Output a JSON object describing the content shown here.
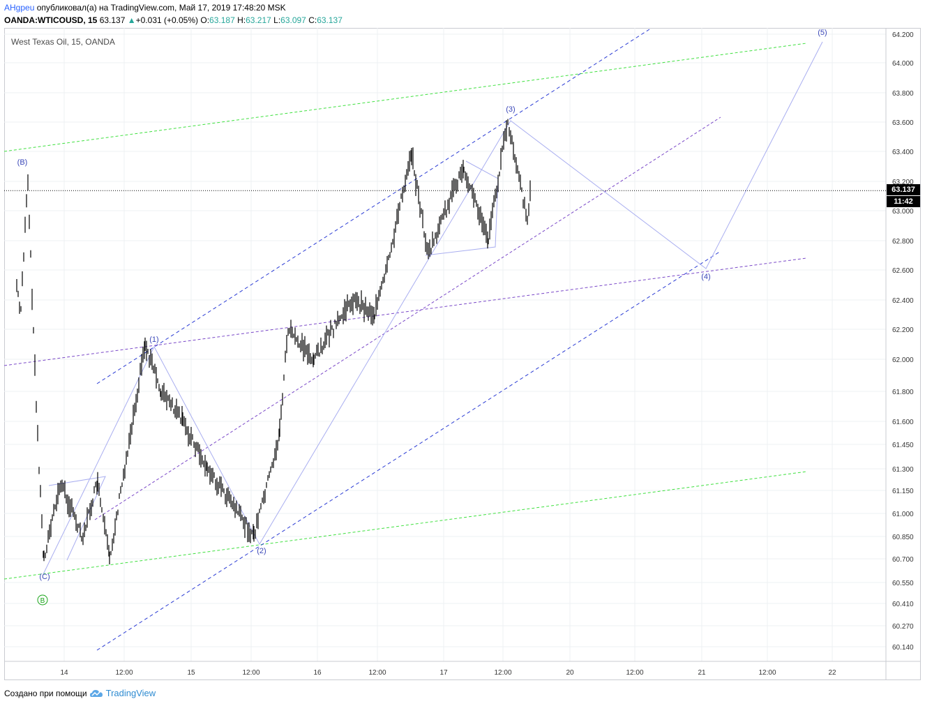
{
  "header": {
    "author": "AHgpeu",
    "published_text": "опубликовал(а) на TradingView.com, Май 17, 2019 17:48:20 MSK",
    "symbol": "OANDA:WTICOUSD, 15",
    "last": "63.137",
    "change_arrow": "▲",
    "change": "+0.031 (+0.05%)",
    "open_label": "O:",
    "open": "63.187",
    "high_label": "H:",
    "high": "63.217",
    "low_label": "L:",
    "low": "63.097",
    "close_label": "C:",
    "close": "63.137"
  },
  "chart_title": "West Texas Oil, 15, OANDA",
  "footer": {
    "created_with": "Создано при помощи",
    "brand": "TradingView",
    "brand_icon": "tradingview-cloud-icon"
  },
  "current_price_tag": "63.137",
  "countdown_tag": "11:42",
  "price_at_countdown": "63.000",
  "colors": {
    "candles": "#000000",
    "blue_channel": "#2a3bd4",
    "green_channel": "#3fe03f",
    "purple_lines": "#7a48c8",
    "wave_lines": "#a9aef0",
    "wave_labels": "#3a47b8",
    "circle_label": "#16a316"
  },
  "chart_data": {
    "type": "line",
    "instrument": "OANDA:WTICOUSD",
    "timeframe": "15",
    "y_ticks": [
      "64.200",
      "64.000",
      "63.800",
      "63.600",
      "63.400",
      "63.200",
      "63.000",
      "62.800",
      "62.600",
      "62.400",
      "62.200",
      "62.000",
      "61.800",
      "61.600",
      "61.450",
      "61.300",
      "61.150",
      "61.000",
      "60.850",
      "60.700",
      "60.550",
      "60.410",
      "60.270",
      "60.140"
    ],
    "x_ticks": [
      "14",
      "12:00",
      "15",
      "12:00",
      "16",
      "12:00",
      "17",
      "12:00",
      "20",
      "12:00",
      "21",
      "12:00",
      "22"
    ],
    "price_path": [
      {
        "x": 0,
        "y": 62.5
      },
      {
        "x": 0.3,
        "y": 62.3
      },
      {
        "x": 0.9,
        "y": 63.2
      },
      {
        "x": 1.6,
        "y": 61.7
      },
      {
        "x": 2.2,
        "y": 60.7
      },
      {
        "x": 3.6,
        "y": 61.2
      },
      {
        "x": 5.4,
        "y": 60.85
      },
      {
        "x": 6.6,
        "y": 61.2
      },
      {
        "x": 7.6,
        "y": 60.7
      },
      {
        "x": 10.5,
        "y": 62.1
      },
      {
        "x": 11.8,
        "y": 61.8
      },
      {
        "x": 13.6,
        "y": 61.6
      },
      {
        "x": 15.6,
        "y": 61.3
      },
      {
        "x": 19.4,
        "y": 60.85
      },
      {
        "x": 21.5,
        "y": 61.5
      },
      {
        "x": 22.2,
        "y": 62.2
      },
      {
        "x": 24.3,
        "y": 62.0
      },
      {
        "x": 27.5,
        "y": 62.4
      },
      {
        "x": 29.3,
        "y": 62.3
      },
      {
        "x": 30.3,
        "y": 62.6
      },
      {
        "x": 32.3,
        "y": 63.4
      },
      {
        "x": 33.7,
        "y": 62.7
      },
      {
        "x": 36.6,
        "y": 63.3
      },
      {
        "x": 38.6,
        "y": 62.8
      },
      {
        "x": 40.2,
        "y": 63.6
      },
      {
        "x": 41.8,
        "y": 62.95
      },
      {
        "x": 42.1,
        "y": 63.137
      }
    ],
    "wave_labels": [
      {
        "text": "(B)",
        "x": 0.9,
        "y": 63.28
      },
      {
        "text": "(C)",
        "x": 2.2,
        "y": 60.58
      },
      {
        "text": "(1)",
        "x": 8.4,
        "y": 62.1
      },
      {
        "text": "(2)",
        "x": 19.4,
        "y": 60.78
      },
      {
        "text": "(3)",
        "x": 40.2,
        "y": 63.64
      },
      {
        "text": "(4)",
        "x": 55.5,
        "y": 62.57
      },
      {
        "text": "(5)",
        "x": 64.5,
        "y": 64.2
      }
    ],
    "circle_label": {
      "text": "B",
      "x": 2.2,
      "y": 60.45
    },
    "ylim": [
      60.1,
      64.25
    ],
    "grid": true
  }
}
